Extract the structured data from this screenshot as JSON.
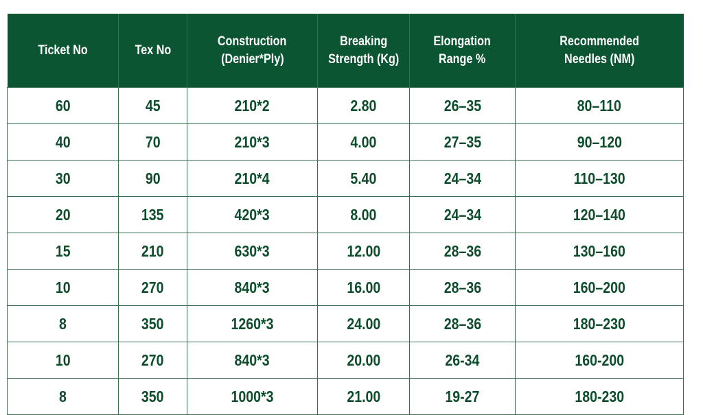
{
  "table": {
    "header": [
      [
        "Ticket No"
      ],
      [
        "Tex No"
      ],
      [
        "Construction",
        "(Denier*Ply)"
      ],
      [
        "Breaking",
        "Strength (Kg)"
      ],
      [
        "Elongation",
        "Range %"
      ],
      [
        "Recommended",
        "Needles (NM)"
      ]
    ],
    "rows": [
      [
        "60",
        "45",
        "210*2",
        "2.80",
        "26–35",
        "80–110"
      ],
      [
        "40",
        "70",
        "210*3",
        "4.00",
        "27–35",
        "90–120"
      ],
      [
        "30",
        "90",
        "210*4",
        "5.40",
        "24–34",
        "110–130"
      ],
      [
        "20",
        "135",
        "420*3",
        "8.00",
        "24–34",
        "120–140"
      ],
      [
        "15",
        "210",
        "630*3",
        "12.00",
        "28–36",
        "130–160"
      ],
      [
        "10",
        "270",
        "840*3",
        "16.00",
        "28–36",
        "160–200"
      ],
      [
        "8",
        "350",
        "1260*3",
        "24.00",
        "28–36",
        "180–230"
      ],
      [
        "10",
        "270",
        "840*3",
        "20.00",
        "26-34",
        "160-200"
      ],
      [
        "8",
        "350",
        "1000*3",
        "21.00",
        "19-27",
        "180-230"
      ]
    ]
  }
}
